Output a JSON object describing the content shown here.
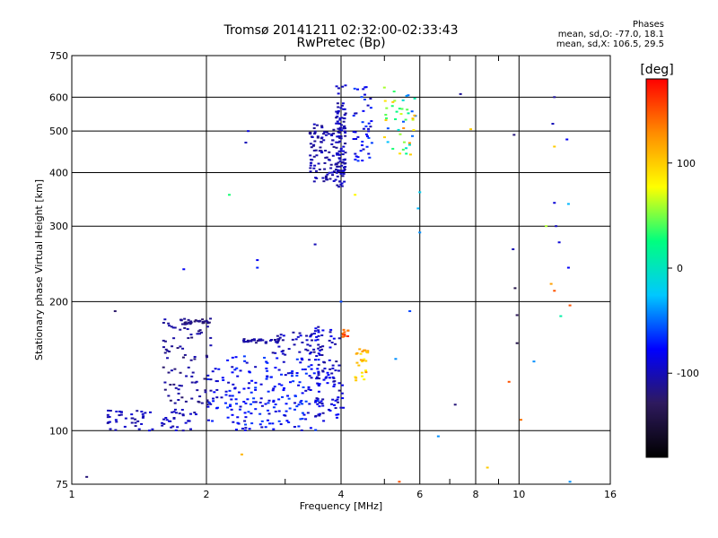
{
  "chart_data": {
    "type": "scatter",
    "title": "Tromsø 20141211 02:32:00-02:33:43",
    "subtitle": "RwPretec (Bp)",
    "xlabel": "Frequency [MHz]",
    "ylabel": "Stationary phase Virtual Height [km]",
    "x_scale": "log",
    "y_scale": "log",
    "xlim": [
      1,
      16
    ],
    "ylim": [
      75,
      750
    ],
    "x_ticks": [
      1,
      2,
      4,
      6,
      8,
      10,
      16
    ],
    "x_tick_labels": [
      "1",
      "2",
      "4",
      "6",
      "8",
      "10",
      "16"
    ],
    "x_minor_ticks": [
      3,
      5,
      7,
      9
    ],
    "y_ticks": [
      75,
      100,
      200,
      300,
      400,
      500,
      600,
      750
    ],
    "y_tick_labels": [
      "75",
      "100",
      "200",
      "300",
      "400",
      "500",
      "600",
      "750"
    ],
    "grid": true,
    "stats": {
      "title": "Phases",
      "o_line": "mean, sd,O: -77.0, 18.1",
      "x_line": "mean, sd,X: 106.5, 29.5"
    },
    "colorbar": {
      "label": "[deg]",
      "range": [
        -180,
        180
      ],
      "ticks": [
        100,
        0,
        -100
      ],
      "tick_labels": [
        "100",
        "0",
        "-100"
      ],
      "stops": [
        "#000000",
        "#2e1a5e",
        "#0000ff",
        "#00c8ff",
        "#00ff7f",
        "#ffff00",
        "#ff8c00",
        "#ff0000"
      ]
    },
    "clusters": [
      {
        "xmin": 1.2,
        "xmax": 1.9,
        "ymin": 100,
        "ymax": 112,
        "n": 70,
        "phase": [
          -110,
          -90
        ]
      },
      {
        "xmin": 1.6,
        "xmax": 2.05,
        "ymin": 115,
        "ymax": 182,
        "n": 85,
        "phase": [
          -125,
          -100
        ]
      },
      {
        "xmin": 1.75,
        "xmax": 2.05,
        "ymin": 177,
        "ymax": 183,
        "n": 30,
        "phase": [
          -125,
          -110
        ]
      },
      {
        "xmin": 2.0,
        "xmax": 3.6,
        "ymin": 100,
        "ymax": 150,
        "n": 220,
        "phase": [
          -100,
          -60
        ]
      },
      {
        "xmin": 2.4,
        "xmax": 2.9,
        "ymin": 160,
        "ymax": 164,
        "n": 30,
        "phase": [
          -120,
          -100
        ]
      },
      {
        "xmin": 2.8,
        "xmax": 3.6,
        "ymin": 150,
        "ymax": 172,
        "n": 45,
        "phase": [
          -115,
          -85
        ]
      },
      {
        "xmin": 3.5,
        "xmax": 4.05,
        "ymin": 105,
        "ymax": 175,
        "n": 90,
        "phase": [
          -115,
          -75
        ]
      },
      {
        "xmin": 3.4,
        "xmax": 3.9,
        "ymin": 380,
        "ymax": 520,
        "n": 90,
        "phase": [
          -115,
          -95
        ]
      },
      {
        "xmin": 3.9,
        "xmax": 4.1,
        "ymin": 370,
        "ymax": 640,
        "n": 110,
        "phase": [
          -115,
          -90
        ]
      },
      {
        "xmin": 4.25,
        "xmax": 4.7,
        "ymin": 420,
        "ymax": 640,
        "n": 45,
        "phase": [
          -105,
          -60
        ]
      },
      {
        "xmin": 5.0,
        "xmax": 5.9,
        "ymin": 440,
        "ymax": 640,
        "n": 45,
        "phase": [
          -60,
          130
        ]
      },
      {
        "xmin": 4.3,
        "xmax": 4.6,
        "ymin": 128,
        "ymax": 155,
        "n": 25,
        "phase": [
          80,
          130
        ]
      },
      {
        "xmin": 4.0,
        "xmax": 4.15,
        "ymin": 165,
        "ymax": 175,
        "n": 10,
        "phase": [
          130,
          170
        ]
      }
    ],
    "points": [
      {
        "x": 1.08,
        "y": 78,
        "phase": -120
      },
      {
        "x": 1.25,
        "y": 190,
        "phase": -125
      },
      {
        "x": 1.78,
        "y": 238,
        "phase": -80
      },
      {
        "x": 2.45,
        "y": 470,
        "phase": -100
      },
      {
        "x": 2.48,
        "y": 500,
        "phase": -90
      },
      {
        "x": 2.6,
        "y": 250,
        "phase": -80
      },
      {
        "x": 2.6,
        "y": 240,
        "phase": -70
      },
      {
        "x": 2.4,
        "y": 88,
        "phase": 110
      },
      {
        "x": 2.25,
        "y": 355,
        "phase": 30
      },
      {
        "x": 3.5,
        "y": 272,
        "phase": -100
      },
      {
        "x": 4.3,
        "y": 355,
        "phase": 80
      },
      {
        "x": 6.0,
        "y": 290,
        "phase": -40
      },
      {
        "x": 5.95,
        "y": 330,
        "phase": -30
      },
      {
        "x": 6.0,
        "y": 360,
        "phase": -20
      },
      {
        "x": 6.6,
        "y": 97,
        "phase": -40
      },
      {
        "x": 7.2,
        "y": 115,
        "phase": -120
      },
      {
        "x": 7.4,
        "y": 610,
        "phase": -110
      },
      {
        "x": 7.8,
        "y": 505,
        "phase": 100
      },
      {
        "x": 8.5,
        "y": 82,
        "phase": 100
      },
      {
        "x": 9.7,
        "y": 265,
        "phase": -100
      },
      {
        "x": 9.75,
        "y": 490,
        "phase": -120
      },
      {
        "x": 9.8,
        "y": 215,
        "phase": -140
      },
      {
        "x": 9.9,
        "y": 160,
        "phase": -140
      },
      {
        "x": 9.9,
        "y": 186,
        "phase": -130
      },
      {
        "x": 10.1,
        "y": 106,
        "phase": 140
      },
      {
        "x": 9.5,
        "y": 130,
        "phase": 150
      },
      {
        "x": 10.8,
        "y": 145,
        "phase": -40
      },
      {
        "x": 11.5,
        "y": 300,
        "phase": 60
      },
      {
        "x": 12.0,
        "y": 600,
        "phase": -110
      },
      {
        "x": 11.9,
        "y": 520,
        "phase": -100
      },
      {
        "x": 12.0,
        "y": 460,
        "phase": 100
      },
      {
        "x": 12.0,
        "y": 340,
        "phase": -90
      },
      {
        "x": 12.1,
        "y": 300,
        "phase": -100
      },
      {
        "x": 12.3,
        "y": 275,
        "phase": -90
      },
      {
        "x": 12.4,
        "y": 185,
        "phase": 10
      },
      {
        "x": 12.0,
        "y": 212,
        "phase": 150
      },
      {
        "x": 11.8,
        "y": 220,
        "phase": 120
      },
      {
        "x": 12.9,
        "y": 338,
        "phase": -30
      },
      {
        "x": 12.9,
        "y": 240,
        "phase": -80
      },
      {
        "x": 12.8,
        "y": 478,
        "phase": -80
      },
      {
        "x": 13.0,
        "y": 196,
        "phase": 150
      },
      {
        "x": 13.0,
        "y": 76,
        "phase": -40
      },
      {
        "x": 5.4,
        "y": 76,
        "phase": 150
      },
      {
        "x": 5.3,
        "y": 147,
        "phase": -40
      },
      {
        "x": 5.7,
        "y": 190,
        "phase": -60
      },
      {
        "x": 4.0,
        "y": 200,
        "phase": -60
      }
    ]
  }
}
